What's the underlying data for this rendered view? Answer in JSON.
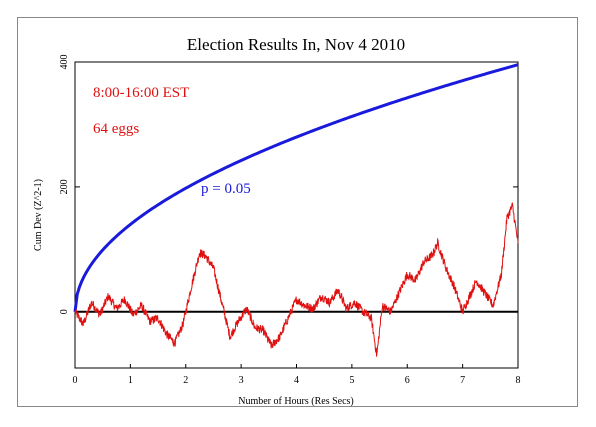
{
  "chart_data": {
    "type": "line",
    "title": "Election Results In, Nov 4 2010",
    "xlabel": "Number of Hours (Res Secs)",
    "ylabel": "Cum Dev (Z^2-1)",
    "xlim": [
      0,
      8
    ],
    "ylim": [
      -90,
      400
    ],
    "x_ticks": [
      "0",
      "1",
      "2",
      "3",
      "4",
      "5",
      "6",
      "7",
      "8"
    ],
    "y_ticks": [
      "0",
      "200",
      "400"
    ],
    "grid": false,
    "annotations": [
      {
        "text": "8:00-16:00 EST",
        "color": "#e01010"
      },
      {
        "text": "64 eggs",
        "color": "#e01010"
      },
      {
        "text": "p = 0.05",
        "color": "#1a1adc"
      }
    ],
    "series": [
      {
        "name": "",
        "role": "cumulative-deviation",
        "color": "#e01010",
        "x": [
          0,
          0.15,
          0.3,
          0.45,
          0.6,
          0.75,
          0.9,
          1.05,
          1.2,
          1.35,
          1.5,
          1.65,
          1.8,
          1.95,
          2.1,
          2.25,
          2.35,
          2.5,
          2.65,
          2.8,
          2.95,
          3.1,
          3.25,
          3.4,
          3.55,
          3.7,
          3.85,
          4.0,
          4.15,
          4.3,
          4.45,
          4.6,
          4.75,
          4.9,
          5.05,
          5.2,
          5.35,
          5.45,
          5.55,
          5.7,
          5.85,
          6.0,
          6.15,
          6.3,
          6.45,
          6.55,
          6.7,
          6.85,
          7.0,
          7.1,
          7.25,
          7.4,
          7.55,
          7.7,
          7.8,
          7.9,
          8.0
        ],
        "y": [
          0,
          -20,
          15,
          -5,
          25,
          5,
          20,
          -5,
          10,
          -15,
          -10,
          -35,
          -50,
          -20,
          40,
          95,
          90,
          70,
          15,
          -40,
          -15,
          5,
          -25,
          -30,
          -55,
          -40,
          -10,
          20,
          10,
          5,
          25,
          15,
          35,
          5,
          15,
          0,
          -10,
          -70,
          10,
          0,
          30,
          60,
          50,
          80,
          90,
          110,
          70,
          40,
          0,
          20,
          50,
          30,
          10,
          60,
          150,
          170,
          110
        ]
      },
      {
        "name": "",
        "role": "p-envelope",
        "color": "#1a1adc",
        "function": "y = 139.9 * sqrt(x)",
        "label": "p = 0.05"
      },
      {
        "name": "",
        "role": "zero-line",
        "color": "#000000",
        "x": [
          0,
          8
        ],
        "y": [
          0,
          0
        ]
      }
    ]
  }
}
